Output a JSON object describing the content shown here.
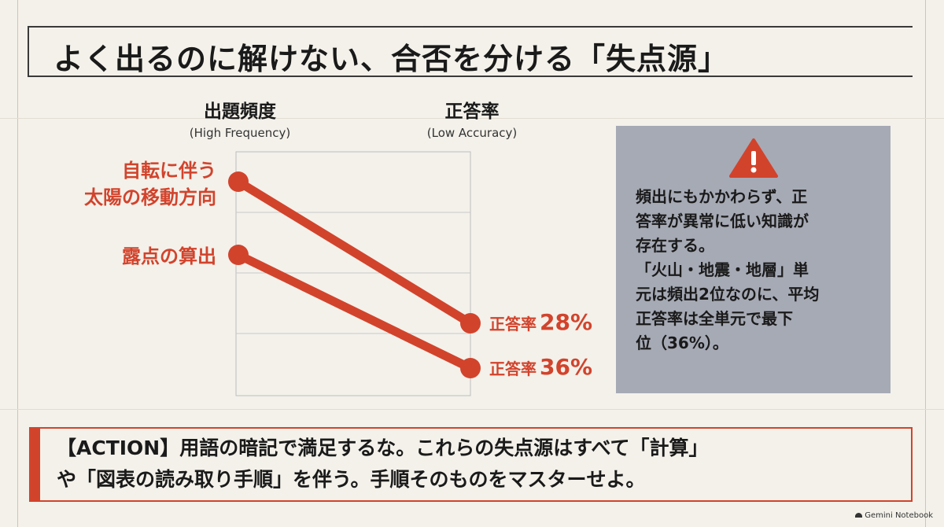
{
  "title": "よく出るのに解けない、合否を分ける「失点源」",
  "columns": {
    "left": {
      "label": "出題頻度",
      "sublabel": "(High Frequency)"
    },
    "right": {
      "label": "正答率",
      "sublabel": "(Low Accuracy)"
    }
  },
  "items": [
    {
      "label_lines": [
        "自転に伴う",
        "太陽の移動方向"
      ],
      "accuracy_label": "正答率",
      "accuracy_value": "28%"
    },
    {
      "label_lines": [
        "露点の算出"
      ],
      "accuracy_label": "正答率",
      "accuracy_value": "36%"
    }
  ],
  "chart_data": {
    "type": "line",
    "series": [
      {
        "name": "自転に伴う太陽の移動方向",
        "accuracy": 28
      },
      {
        "name": "露点の算出",
        "accuracy": 36
      }
    ]
  },
  "info": {
    "icon": "warning-triangle-icon",
    "lines": [
      "頻出にもかかわらず、正",
      "答率が異常に低い知識が",
      "存在する。",
      "「火山・地震・地層」単",
      "元は頻出2位なのに、平均",
      "正答率は全単元で最下",
      "位（36%）。"
    ]
  },
  "action": {
    "lines": [
      "【ACTION】用語の暗記で満足するな。これらの失点源はすべて「計算」",
      "や「図表の読み取り手順」を伴う。手順そのものをマスターせよ。"
    ]
  },
  "logo": "Gemini Notebook",
  "colors": {
    "accent": "#d2432c",
    "panel": "#a6aab5",
    "background": "#f3f1ea"
  }
}
